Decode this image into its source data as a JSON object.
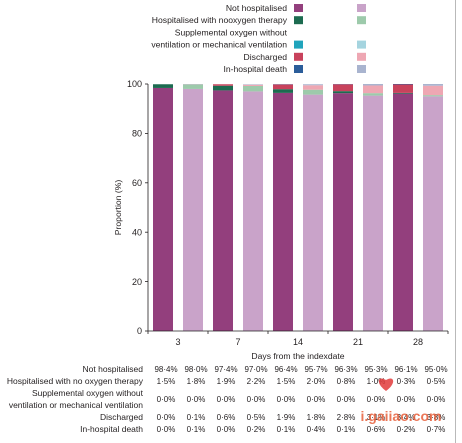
{
  "chart_data": {
    "type": "bar",
    "stacked": true,
    "categories": [
      "3",
      "7",
      "14",
      "21",
      "28"
    ],
    "xlabel": "Days from the indexdate",
    "ylabel": "Proportion (%)",
    "ylim": [
      0,
      100
    ],
    "yticks": [
      0,
      20,
      40,
      60,
      80,
      100
    ],
    "grid": false,
    "legend_position": "top",
    "series": [
      {
        "name_lines": [
          "Not hospitalised"
        ],
        "colors": [
          "#933f7d",
          "#c9a3c9"
        ],
        "values": [
          [
            98.4,
            98.0
          ],
          [
            97.4,
            97.0
          ],
          [
            96.4,
            95.7
          ],
          [
            96.3,
            95.3
          ],
          [
            96.1,
            95.0
          ]
        ]
      },
      {
        "name_lines": [
          "Hospitalised with nooxygen therapy"
        ],
        "colors": [
          "#1c6b50",
          "#9dcaab"
        ],
        "values": [
          [
            1.5,
            1.8
          ],
          [
            1.9,
            2.2
          ],
          [
            1.5,
            2.0
          ],
          [
            0.8,
            1.0
          ],
          [
            0.3,
            0.5
          ]
        ]
      },
      {
        "name_lines": [
          "Supplemental oxygen without",
          "ventilation or mechanical ventilation"
        ],
        "colors": [
          "#20a4bc",
          "#a5d4df"
        ],
        "values": [
          [
            0.0,
            0.0
          ],
          [
            0.0,
            0.0
          ],
          [
            0.0,
            0.0
          ],
          [
            0.0,
            0.0
          ],
          [
            0.0,
            0.0
          ]
        ]
      },
      {
        "name_lines": [
          "Discharged"
        ],
        "colors": [
          "#c8425c",
          "#eea7b3"
        ],
        "values": [
          [
            0.0,
            0.1
          ],
          [
            0.6,
            0.5
          ],
          [
            1.9,
            1.8
          ],
          [
            2.8,
            3.1
          ],
          [
            3.4,
            3.8
          ]
        ]
      },
      {
        "name_lines": [
          "In-hospital death"
        ],
        "colors": [
          "#2b5d9a",
          "#a9b4cf"
        ],
        "values": [
          [
            0.0,
            0.1
          ],
          [
            0.0,
            0.2
          ],
          [
            0.1,
            0.4
          ],
          [
            0.1,
            0.6
          ],
          [
            0.2,
            0.7
          ]
        ]
      }
    ]
  },
  "table": {
    "rows": [
      {
        "label_lines": [
          "Not hospitalised"
        ],
        "values": [
          "98·4%",
          "98·0%",
          "97·4%",
          "97·0%",
          "96·4%",
          "95·7%",
          "96·3%",
          "95·3%",
          "96·1%",
          "95·0%"
        ]
      },
      {
        "label_lines": [
          "Hospitalised with no oxygen therapy"
        ],
        "values": [
          "1·5%",
          "1·8%",
          "1·9%",
          "2·2%",
          "1·5%",
          "2·0%",
          "0·8%",
          "1·0%",
          "0·3%",
          "0·5%"
        ]
      },
      {
        "label_lines": [
          "Supplemental oxygen without",
          "ventilation or mechanical ventilation"
        ],
        "values": [
          "0·0%",
          "0·0%",
          "0·0%",
          "0·0%",
          "0·0%",
          "0·0%",
          "0·0%",
          "0·0%",
          "0·0%",
          "0·0%"
        ]
      },
      {
        "label_lines": [
          "Discharged"
        ],
        "values": [
          "0·0%",
          "0·1%",
          "0·6%",
          "0·5%",
          "1·9%",
          "1·8%",
          "2·8%",
          "3·1%",
          "3·4%",
          "3·8%"
        ]
      },
      {
        "label_lines": [
          "In-hospital death"
        ],
        "values": [
          "0·0%",
          "0·1%",
          "0·0%",
          "0·2%",
          "0·1%",
          "0·4%",
          "0·1%",
          "0·6%",
          "0·2%",
          "0·7%"
        ]
      }
    ]
  },
  "watermark": {
    "site": "i.gaiiao.com"
  }
}
